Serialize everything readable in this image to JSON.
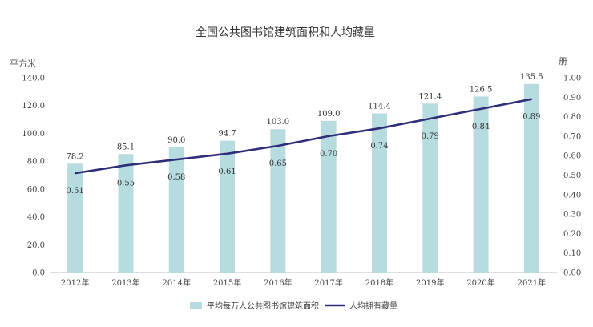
{
  "chart_data": {
    "type": "bar",
    "title": "全国公共图书馆建筑面积和人均藏量",
    "ylabel": "平方米",
    "y2label": "册",
    "categories": [
      "2012年",
      "2013年",
      "2014年",
      "2015年",
      "2016年",
      "2017年",
      "2018年",
      "2019年",
      "2020年",
      "2021年"
    ],
    "ylim": [
      0,
      140
    ],
    "y2lim": [
      0,
      1.0
    ],
    "yticks": [
      "0.0",
      "20.0",
      "40.0",
      "60.0",
      "80.0",
      "100.0",
      "120.0",
      "140.0"
    ],
    "y2ticks": [
      "0.00",
      "0.10",
      "0.20",
      "0.30",
      "0.40",
      "0.50",
      "0.60",
      "0.70",
      "0.80",
      "0.90",
      "1.00"
    ],
    "legend_position": "bottom",
    "series": [
      {
        "name": "平均每万人公共图书馆建筑面积",
        "type": "bar",
        "axis": "left",
        "color": "#b7dcdf",
        "values": [
          78.2,
          85.1,
          90.0,
          94.7,
          103.0,
          109.0,
          114.4,
          121.4,
          126.5,
          135.5
        ],
        "labels": [
          "78.2",
          "85.1",
          "90.0",
          "94.7",
          "103.0",
          "109.0",
          "114.4",
          "121.4",
          "126.5",
          "135.5"
        ]
      },
      {
        "name": "人均拥有藏量",
        "type": "line",
        "axis": "right",
        "color": "#2e2f7a",
        "values": [
          0.51,
          0.55,
          0.58,
          0.61,
          0.65,
          0.7,
          0.74,
          0.79,
          0.84,
          0.89
        ],
        "labels": [
          "0.51",
          "0.55",
          "0.58",
          "0.61",
          "0.65",
          "0.70",
          "0.74",
          "0.79",
          "0.84",
          "0.89"
        ]
      }
    ]
  }
}
